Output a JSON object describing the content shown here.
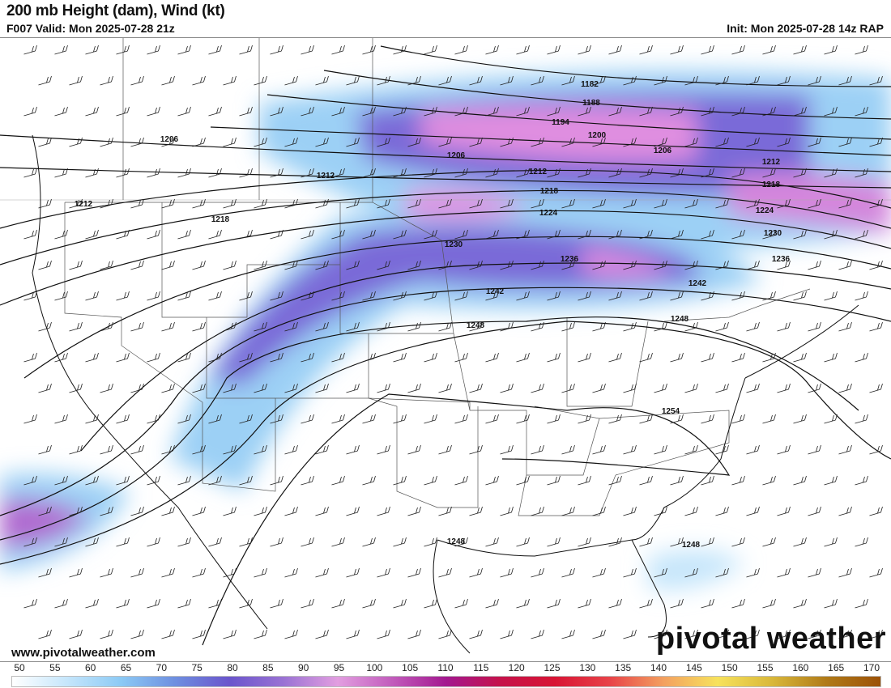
{
  "header": {
    "title": "200 mb Height (dam), Wind (kt)",
    "valid": "F007 Valid: Mon 2025-07-28 21z",
    "init": "Init: Mon 2025-07-28 14z RAP"
  },
  "footer": {
    "website": "www.pivotalweather.com",
    "logo": "pivotal weather"
  },
  "contour_labels": [
    "1182",
    "1188",
    "1194",
    "1200",
    "1206",
    "1206",
    "1206",
    "1212",
    "1212",
    "1212",
    "1212",
    "1218",
    "1218",
    "1218",
    "1224",
    "1224",
    "1230",
    "1230",
    "1236",
    "1236",
    "1242",
    "1242",
    "1248",
    "1248",
    "1248",
    "1248",
    "1254"
  ],
  "colorbar": {
    "units": "kt",
    "ticks": [
      "50",
      "55",
      "60",
      "65",
      "70",
      "75",
      "80",
      "85",
      "90",
      "95",
      "100",
      "105",
      "110",
      "115",
      "120",
      "125",
      "130",
      "135",
      "140",
      "145",
      "150",
      "155",
      "160",
      "165",
      "170"
    ],
    "colors": [
      "#ffffff",
      "#c6e6fb",
      "#8ccaf5",
      "#6e8fe0",
      "#6a55cc",
      "#9a72d4",
      "#e29ee0",
      "#c25cbc",
      "#a3188f",
      "#c5124a",
      "#d81434",
      "#e84248",
      "#f3a060",
      "#f7e25c",
      "#d9b83a",
      "#b07a18",
      "#9c5208"
    ]
  }
}
